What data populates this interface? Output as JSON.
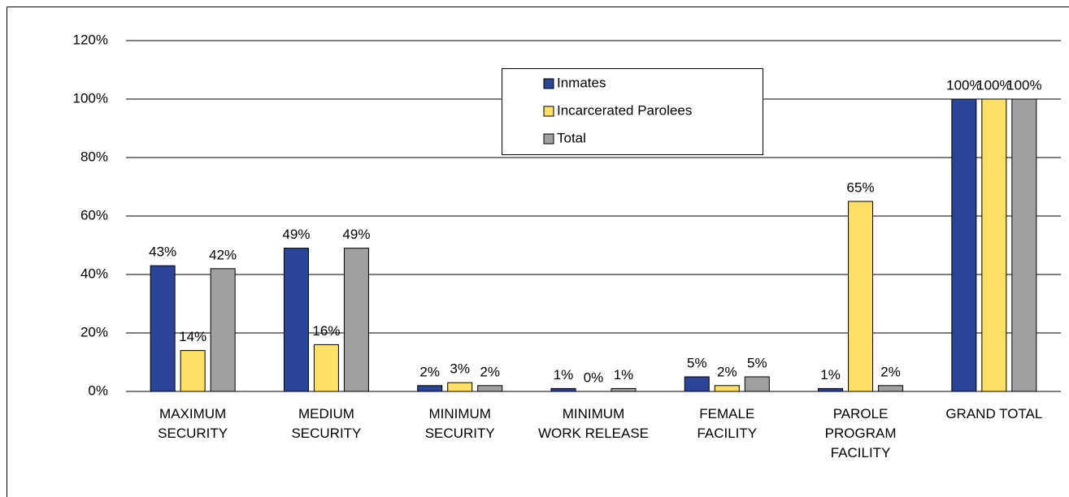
{
  "chart_data": {
    "type": "bar",
    "categories": [
      "MAXIMUM\nSECURITY",
      "MEDIUM\nSECURITY",
      "MINIMUM\nSECURITY",
      "MINIMUM\nWORK RELEASE",
      "FEMALE\nFACILITY",
      "PAROLE\nPROGRAM\nFACILITY",
      "GRAND TOTAL"
    ],
    "series": [
      {
        "name": "Inmates",
        "color": "#2b4596",
        "values": [
          43,
          49,
          2,
          1,
          5,
          1,
          100
        ],
        "value_labels": [
          "43%",
          "49%",
          "2%",
          "1%",
          "5%",
          "1%",
          "100%"
        ]
      },
      {
        "name": "Incarcerated Parolees",
        "color": "#ffe066",
        "values": [
          14,
          16,
          3,
          0,
          2,
          65,
          100
        ],
        "value_labels": [
          "14%",
          "16%",
          "3%",
          "0%",
          "2%",
          "65%",
          "100%"
        ]
      },
      {
        "name": "Total",
        "color": "#a0a0a0",
        "values": [
          42,
          49,
          2,
          1,
          5,
          2,
          100
        ],
        "value_labels": [
          "42%",
          "49%",
          "2%",
          "1%",
          "5%",
          "2%",
          "100%"
        ]
      }
    ],
    "ylim": [
      0,
      120
    ],
    "yticks": [
      {
        "value": 0,
        "label": "0%"
      },
      {
        "value": 20,
        "label": "20%"
      },
      {
        "value": 40,
        "label": "40%"
      },
      {
        "value": 60,
        "label": "60%"
      },
      {
        "value": 80,
        "label": "80%"
      },
      {
        "value": 100,
        "label": "100%"
      },
      {
        "value": 120,
        "label": "120%"
      }
    ],
    "grid": true,
    "legend": "top-center"
  }
}
